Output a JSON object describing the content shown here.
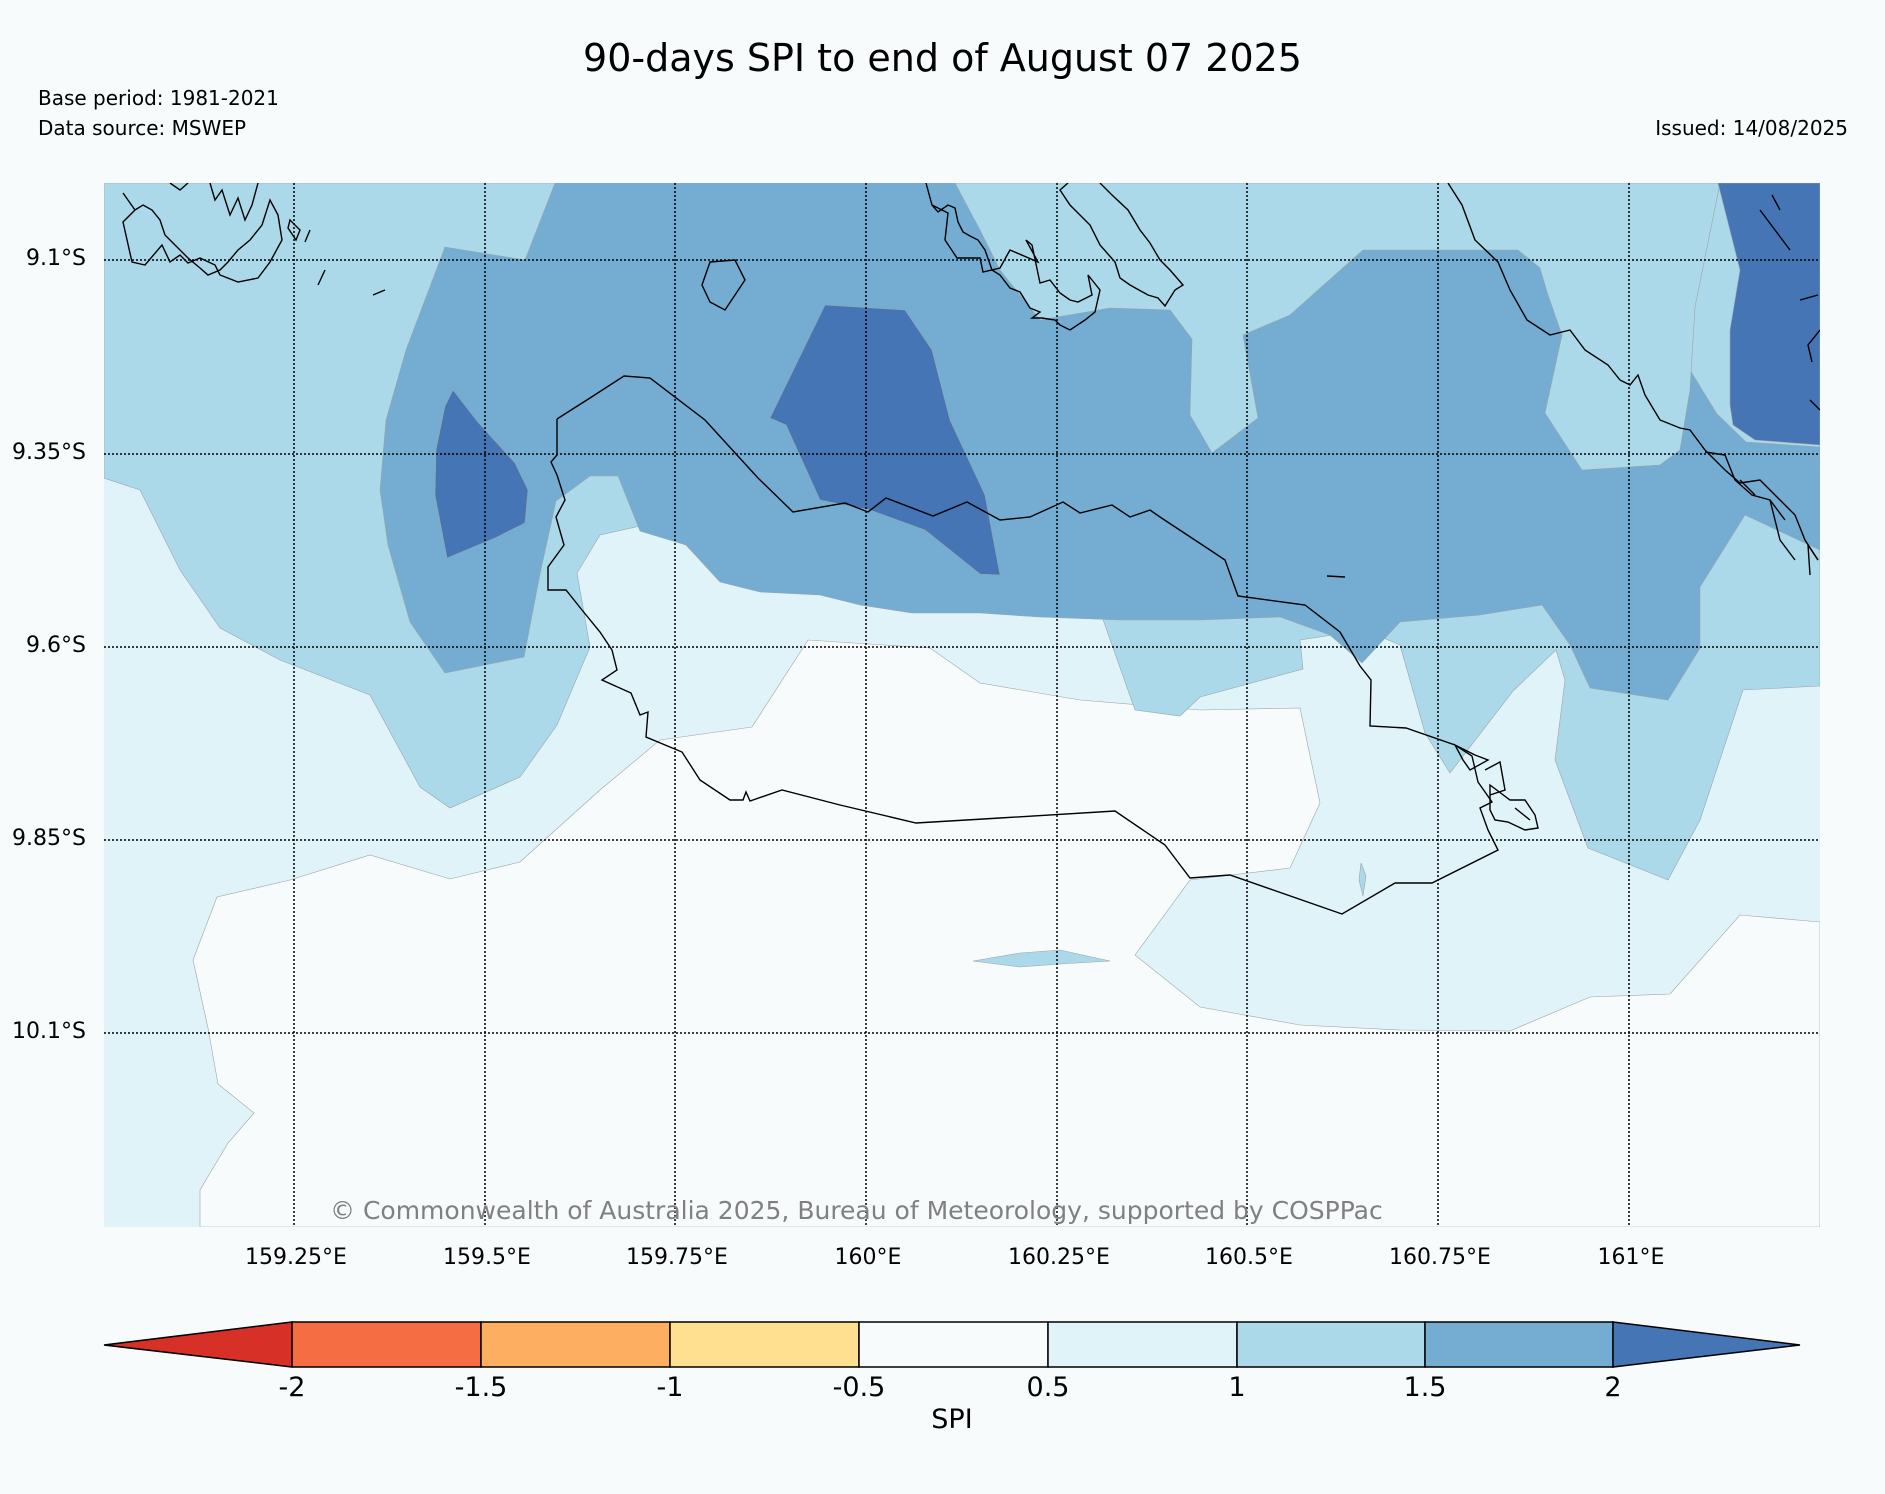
{
  "header": {
    "title": "90-days SPI to end of August 07 2025",
    "base_period": "Base period: 1981-2021",
    "data_source": "Data source: MSWEP",
    "issued": "Issued: 14/08/2025"
  },
  "map": {
    "lat_labels": [
      "9.1°S",
      "9.35°S",
      "9.6°S",
      "9.85°S",
      "10.1°S"
    ],
    "lon_labels": [
      "159.25°E",
      "159.5°E",
      "159.75°E",
      "160°E",
      "160.25°E",
      "160.5°E",
      "160.75°E",
      "161°E"
    ],
    "copyright": "© Commonwealth of Australia 2025, Bureau of Meteorology, supported by COSPPac",
    "colors": {
      "lt_-2": "#d73027",
      "-2_-1.5": "#f46d43",
      "-1.5_-1": "#fdae61",
      "-1_-0.5": "#fee090",
      "-0.5_0.5": "#f7fbfc",
      "0.5_1": "#e0f3f8",
      "1_1.5": "#abd9e9",
      "1.5_2": "#74add1",
      "gt_2": "#4575b4"
    }
  },
  "colorbar": {
    "label": "SPI",
    "ticks": [
      "-2",
      "-1.5",
      "-1",
      "-0.5",
      "0.5",
      "1",
      "1.5",
      "2"
    ]
  }
}
